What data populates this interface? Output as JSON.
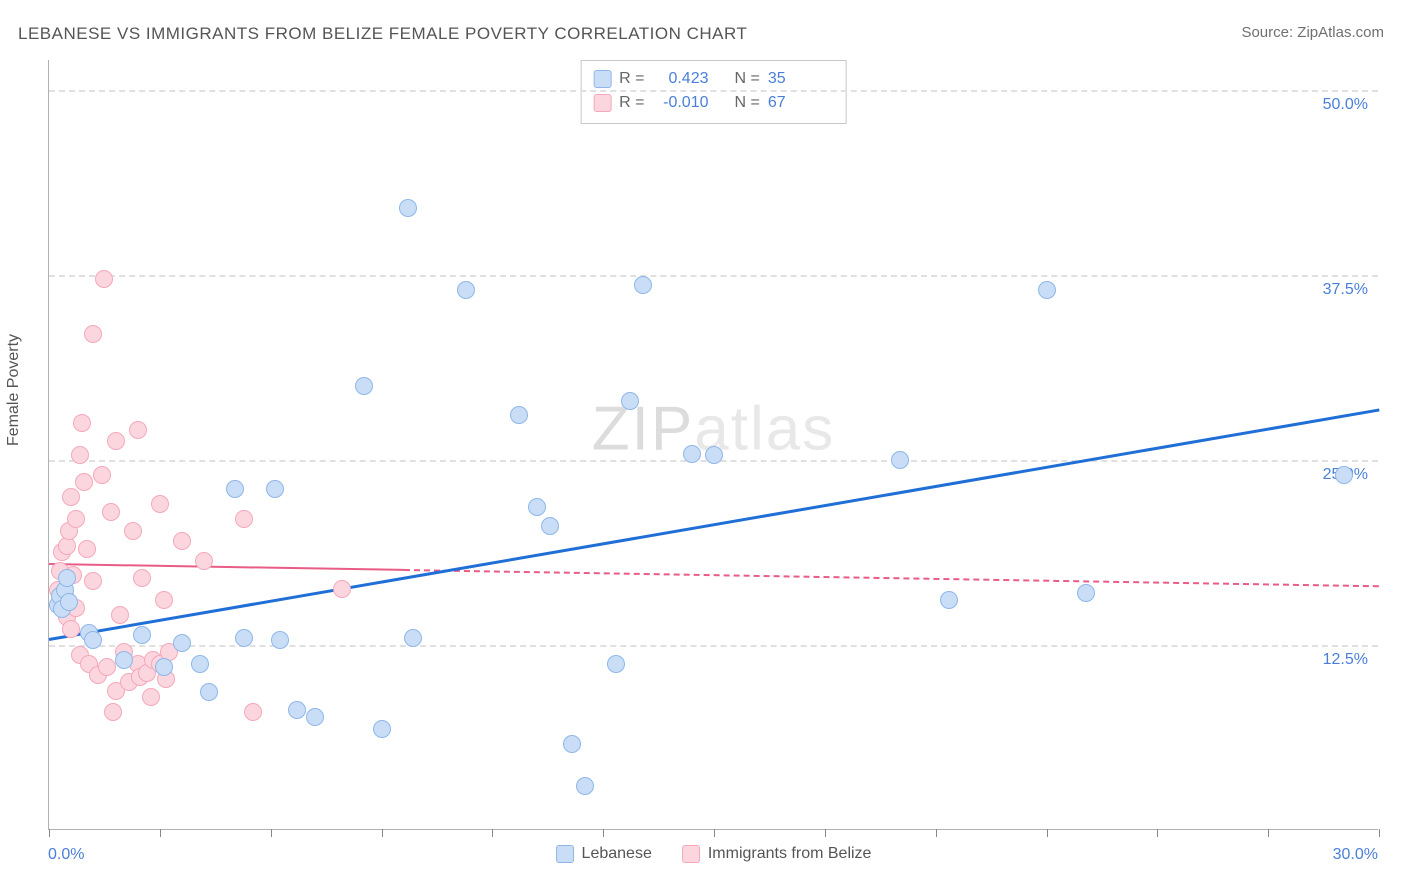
{
  "title": "LEBANESE VS IMMIGRANTS FROM BELIZE FEMALE POVERTY CORRELATION CHART",
  "source": "Source: ZipAtlas.com",
  "watermark": "ZIPatlas",
  "y_axis_label": "Female Poverty",
  "chart": {
    "type": "scatter",
    "xlim": [
      0,
      30
    ],
    "ylim": [
      0,
      52
    ],
    "x_min_label": "0.0%",
    "x_max_label": "30.0%",
    "x_tick_positions": [
      0,
      2.5,
      5,
      7.5,
      10,
      12.5,
      15,
      17.5,
      20,
      22.5,
      25,
      27.5,
      30
    ],
    "y_gridlines": [
      {
        "value": 12.5,
        "label": "12.5%"
      },
      {
        "value": 25.0,
        "label": "25.0%"
      },
      {
        "value": 37.5,
        "label": "37.5%"
      },
      {
        "value": 50.0,
        "label": "50.0%"
      }
    ],
    "background_color": "#ffffff",
    "grid_color": "#e0e0e0",
    "axis_color": "#b0b0b0",
    "tick_label_color": "#4a7fd8",
    "label_color": "#555555",
    "marker_radius": 9,
    "marker_stroke_width": 1.5,
    "title_fontsize": 17,
    "label_fontsize": 16
  },
  "series": [
    {
      "name": "Lebanese",
      "fill_color": "#c9def6",
      "stroke_color": "#8fb6e8",
      "trend_color": "#1f6fd6",
      "trend_width": 3,
      "trend_dash": "solid",
      "R": "0.423",
      "N": "35",
      "trend_y_at_x0": 13.0,
      "trend_y_at_x30": 28.5,
      "points": [
        [
          0.2,
          15.2
        ],
        [
          0.25,
          15.8
        ],
        [
          0.3,
          14.9
        ],
        [
          0.35,
          16.2
        ],
        [
          0.4,
          17.0
        ],
        [
          0.45,
          15.4
        ],
        [
          0.9,
          13.3
        ],
        [
          1.0,
          12.8
        ],
        [
          1.7,
          11.5
        ],
        [
          2.1,
          13.2
        ],
        [
          2.6,
          11.0
        ],
        [
          3.0,
          12.6
        ],
        [
          3.4,
          11.2
        ],
        [
          3.6,
          9.3
        ],
        [
          4.2,
          23.0
        ],
        [
          4.4,
          13.0
        ],
        [
          5.1,
          23.0
        ],
        [
          5.2,
          12.8
        ],
        [
          5.6,
          8.1
        ],
        [
          6.0,
          7.6
        ],
        [
          7.1,
          30.0
        ],
        [
          7.5,
          6.8
        ],
        [
          8.1,
          42.0
        ],
        [
          8.2,
          13.0
        ],
        [
          9.4,
          36.5
        ],
        [
          10.6,
          28.0
        ],
        [
          11.0,
          21.8
        ],
        [
          11.3,
          20.5
        ],
        [
          11.8,
          5.8
        ],
        [
          12.1,
          3.0
        ],
        [
          12.8,
          11.2
        ],
        [
          13.1,
          29.0
        ],
        [
          13.4,
          36.8
        ],
        [
          14.5,
          25.4
        ],
        [
          15.0,
          25.3
        ],
        [
          19.2,
          25.0
        ],
        [
          20.3,
          15.5
        ],
        [
          22.5,
          36.5
        ],
        [
          23.4,
          16.0
        ],
        [
          29.2,
          24.0
        ]
      ]
    },
    {
      "name": "Immigrants from Belize",
      "fill_color": "#fbd6df",
      "stroke_color": "#f4a8ba",
      "trend_color": "#e85c85",
      "trend_width": 2.5,
      "trend_dash": "dashed",
      "trend_solid_until_x": 8.0,
      "R": "-0.010",
      "N": "67",
      "trend_y_at_x0": 18.0,
      "trend_y_at_x30": 16.5,
      "points": [
        [
          0.2,
          16.2
        ],
        [
          0.25,
          17.5
        ],
        [
          0.3,
          18.8
        ],
        [
          0.35,
          15.8
        ],
        [
          0.4,
          19.2
        ],
        [
          0.4,
          14.4
        ],
        [
          0.45,
          20.2
        ],
        [
          0.5,
          22.5
        ],
        [
          0.5,
          13.6
        ],
        [
          0.55,
          17.2
        ],
        [
          0.6,
          21.0
        ],
        [
          0.6,
          15.0
        ],
        [
          0.7,
          25.3
        ],
        [
          0.7,
          11.8
        ],
        [
          0.75,
          27.5
        ],
        [
          0.8,
          23.5
        ],
        [
          0.85,
          19.0
        ],
        [
          0.9,
          11.2
        ],
        [
          1.0,
          33.5
        ],
        [
          1.0,
          16.8
        ],
        [
          1.1,
          10.5
        ],
        [
          1.2,
          24.0
        ],
        [
          1.25,
          37.2
        ],
        [
          1.3,
          11.0
        ],
        [
          1.4,
          21.5
        ],
        [
          1.45,
          8.0
        ],
        [
          1.5,
          26.3
        ],
        [
          1.5,
          9.4
        ],
        [
          1.6,
          14.5
        ],
        [
          1.7,
          12.0
        ],
        [
          1.8,
          10.0
        ],
        [
          1.9,
          20.2
        ],
        [
          2.0,
          27.0
        ],
        [
          2.0,
          11.2
        ],
        [
          2.05,
          10.3
        ],
        [
          2.1,
          17.0
        ],
        [
          2.2,
          10.6
        ],
        [
          2.3,
          9.0
        ],
        [
          2.35,
          11.5
        ],
        [
          2.5,
          22.0
        ],
        [
          2.5,
          11.2
        ],
        [
          2.6,
          15.5
        ],
        [
          2.65,
          10.2
        ],
        [
          2.7,
          12.0
        ],
        [
          3.0,
          19.5
        ],
        [
          3.5,
          18.2
        ],
        [
          4.4,
          21.0
        ],
        [
          4.6,
          8.0
        ],
        [
          6.6,
          16.3
        ]
      ]
    }
  ],
  "legend_top": {
    "r_label": "R =",
    "n_label": "N ="
  },
  "legend_bottom": [
    {
      "series_index": 0
    },
    {
      "series_index": 1
    }
  ]
}
